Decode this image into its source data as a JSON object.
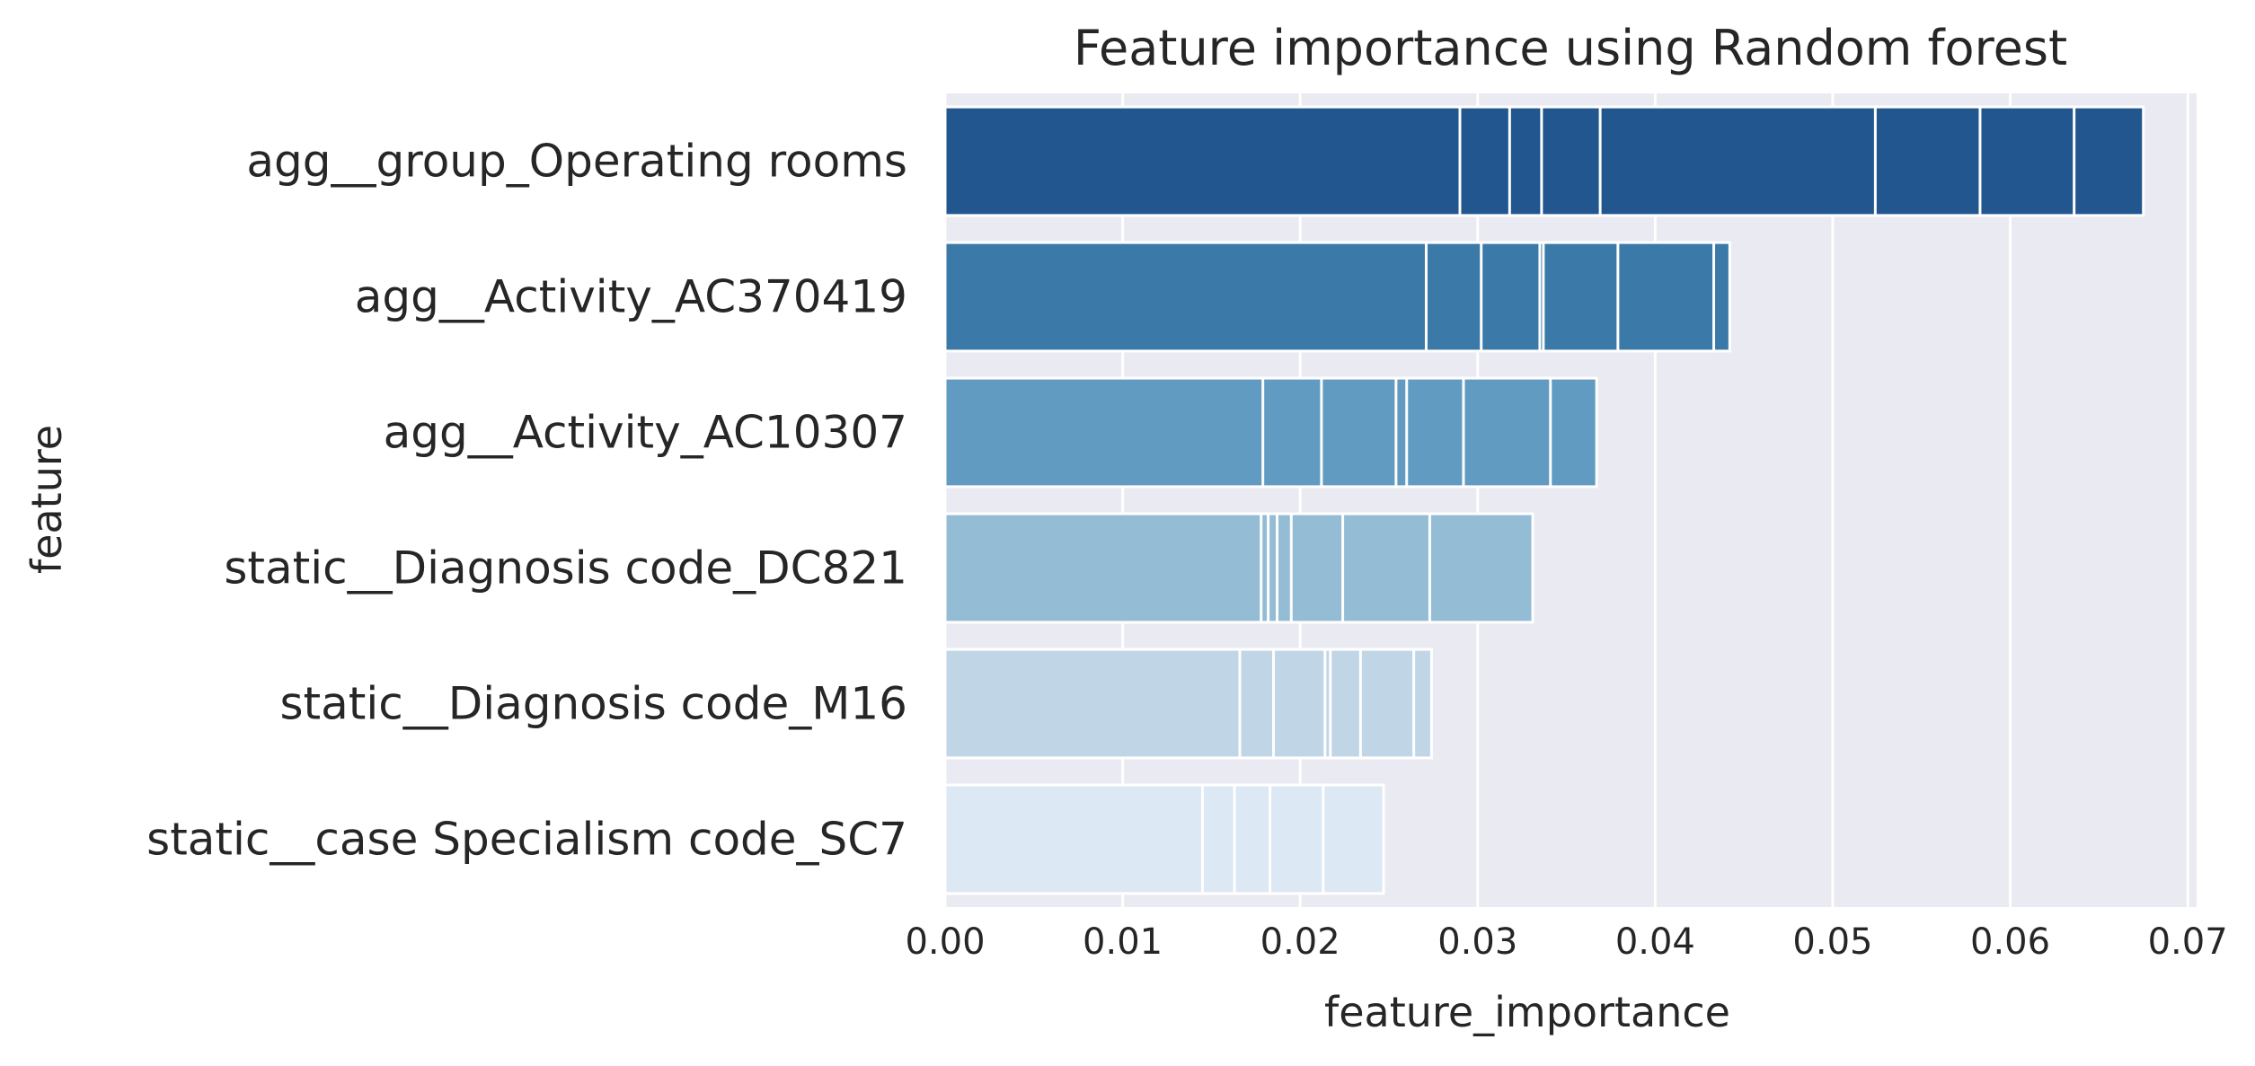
{
  "chart_data": {
    "type": "bar",
    "orientation": "horizontal",
    "title": "Feature importance using Random forest",
    "xlabel": "feature_importance",
    "ylabel": "feature",
    "xlim": [
      0,
      0.0705
    ],
    "xticks": [
      0.0,
      0.01,
      0.02,
      0.03,
      0.04,
      0.05,
      0.06,
      0.07
    ],
    "xtick_labels": [
      "0.00",
      "0.01",
      "0.02",
      "0.03",
      "0.04",
      "0.05",
      "0.06",
      "0.07"
    ],
    "grid": true,
    "categories": [
      "agg__group_Operating rooms",
      "agg__Activity_AC370419",
      "agg__Activity_AC10307",
      "static__Diagnosis code_DC821",
      "static__Diagnosis code_M16",
      "static__case Specialism code_SC7"
    ],
    "colors": [
      "#21568e",
      "#3b79a8",
      "#629bc1",
      "#94bcd5",
      "#c0d6e7",
      "#dce8f3"
    ],
    "segment_values": [
      [
        0.029,
        0.0318,
        0.0336,
        0.0369,
        0.0524,
        0.0583,
        0.0636,
        0.0675
      ],
      [
        0.0271,
        0.0302,
        0.0335,
        0.0337,
        0.0379,
        0.0433,
        0.0442
      ],
      [
        0.0179,
        0.0212,
        0.0254,
        0.026,
        0.0292,
        0.0341,
        0.0367
      ],
      [
        0.0178,
        0.0182,
        0.0187,
        0.0195,
        0.0224,
        0.0273,
        0.0331
      ],
      [
        0.0166,
        0.0185,
        0.0214,
        0.0217,
        0.0234,
        0.0264,
        0.0274
      ],
      [
        0.0145,
        0.0163,
        0.0183,
        0.0213,
        0.0247
      ]
    ]
  }
}
